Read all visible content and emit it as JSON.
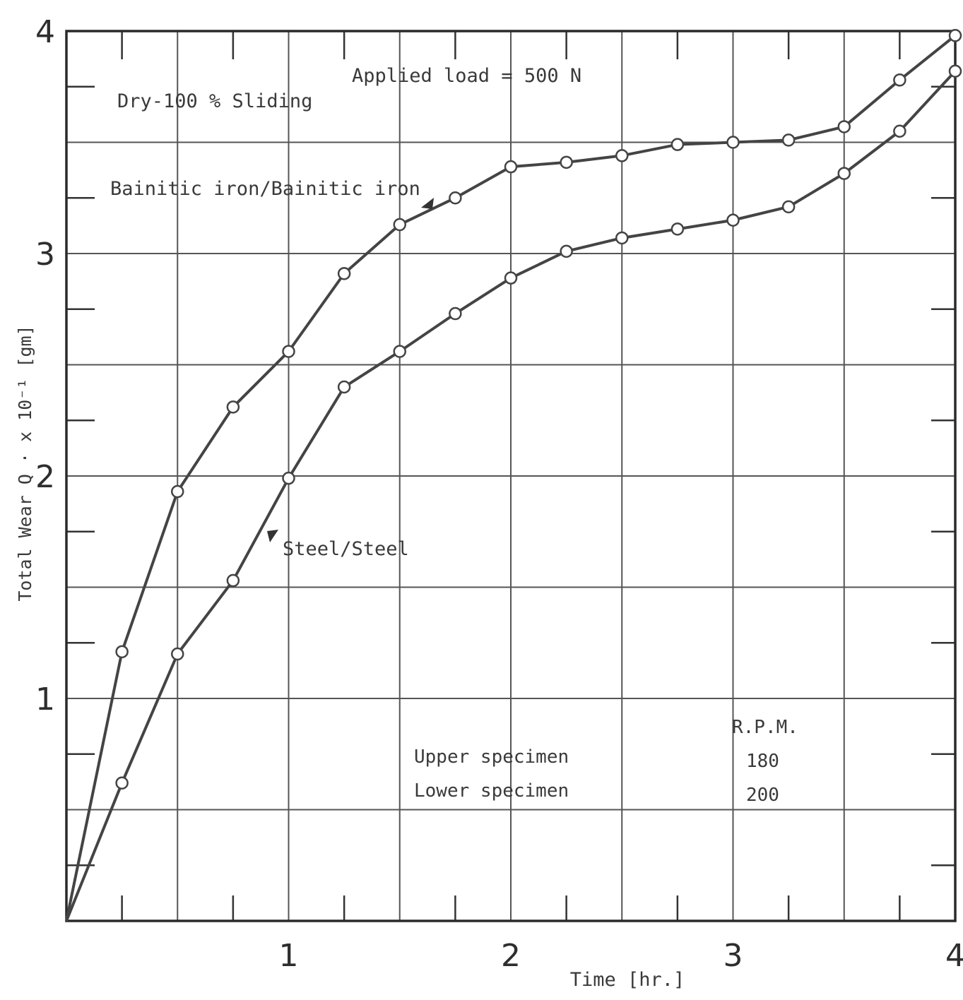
{
  "chart_data": {
    "type": "line",
    "title": "",
    "xlabel": "Time [hr.]",
    "ylabel": "Total Wear Q · x 10⁻¹ [gm]",
    "xlim": [
      0,
      4
    ],
    "ylim": [
      0,
      4
    ],
    "x_ticks": [
      "1",
      "2",
      "3",
      "4"
    ],
    "y_ticks": [
      "1",
      "2",
      "3",
      "4"
    ],
    "grid": true,
    "annotations": {
      "condition": "Dry-100 % Sliding",
      "load": "Applied load = 500 N",
      "rpm_header": "R.P.M.",
      "upper_label": "Upper specimen",
      "upper_rpm": "180",
      "lower_label": "Lower specimen",
      "lower_rpm": "200"
    },
    "series": [
      {
        "name": "Bainitic iron/Bainitic iron",
        "color": "#444444",
        "x": [
          0,
          0.25,
          0.5,
          0.75,
          1.0,
          1.25,
          1.5,
          1.75,
          2.0,
          2.25,
          2.5,
          2.75,
          3.0,
          3.25,
          3.5,
          3.75,
          4.0
        ],
        "y": [
          0,
          1.21,
          1.93,
          2.31,
          2.56,
          2.91,
          3.13,
          3.25,
          3.39,
          3.41,
          3.44,
          3.49,
          3.5,
          3.51,
          3.57,
          3.78,
          3.98
        ]
      },
      {
        "name": "Steel/Steel",
        "color": "#444444",
        "x": [
          0,
          0.25,
          0.5,
          0.75,
          1.0,
          1.25,
          1.5,
          1.75,
          2.0,
          2.25,
          2.5,
          2.75,
          3.0,
          3.25,
          3.5,
          3.75,
          4.0
        ],
        "y": [
          0,
          0.62,
          1.2,
          1.53,
          1.99,
          2.4,
          2.56,
          2.73,
          2.89,
          3.01,
          3.07,
          3.11,
          3.15,
          3.21,
          3.36,
          3.55,
          3.82
        ]
      }
    ]
  }
}
